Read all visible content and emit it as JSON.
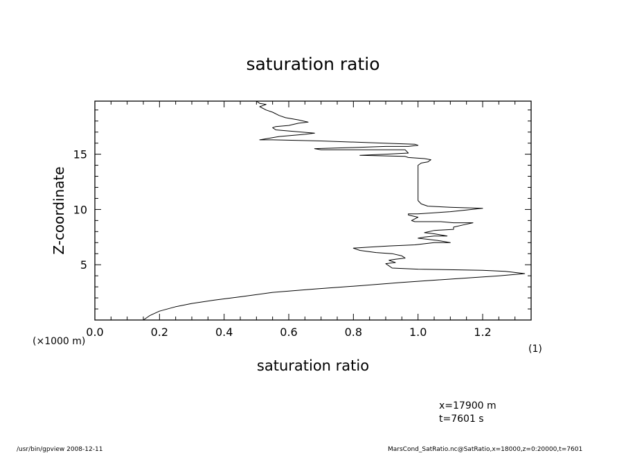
{
  "chart_data": {
    "type": "line",
    "title": "saturation ratio",
    "xlabel": "saturation ratio",
    "ylabel": "Z-coordinate",
    "x_unit": "(1)",
    "y_unit": "(×1000 m)",
    "xlim": [
      0.0,
      1.35
    ],
    "ylim": [
      0.0,
      19.8
    ],
    "x_ticks": [
      "0.0",
      "0.2",
      "0.4",
      "0.6",
      "0.8",
      "1.0",
      "1.2"
    ],
    "y_ticks": [
      "5",
      "10",
      "15"
    ],
    "grid": false,
    "legend": "none",
    "line_color": "#000000",
    "series": [
      {
        "points": [
          [
            0.15,
            0.0
          ],
          [
            0.17,
            0.4
          ],
          [
            0.2,
            0.8
          ],
          [
            0.25,
            1.2
          ],
          [
            0.3,
            1.5
          ],
          [
            0.37,
            1.8
          ],
          [
            0.45,
            2.1
          ],
          [
            0.55,
            2.5
          ],
          [
            0.68,
            2.8
          ],
          [
            0.82,
            3.1
          ],
          [
            0.95,
            3.4
          ],
          [
            1.05,
            3.6
          ],
          [
            1.15,
            3.8
          ],
          [
            1.25,
            4.0
          ],
          [
            1.33,
            4.2
          ],
          [
            1.27,
            4.4
          ],
          [
            1.2,
            4.5
          ],
          [
            1.0,
            4.6
          ],
          [
            0.92,
            4.7
          ],
          [
            0.91,
            4.9
          ],
          [
            0.9,
            5.1
          ],
          [
            0.93,
            5.2
          ],
          [
            0.91,
            5.4
          ],
          [
            0.93,
            5.5
          ],
          [
            0.96,
            5.6
          ],
          [
            0.95,
            5.8
          ],
          [
            0.92,
            6.0
          ],
          [
            0.87,
            6.1
          ],
          [
            0.82,
            6.3
          ],
          [
            0.8,
            6.5
          ],
          [
            0.85,
            6.6
          ],
          [
            0.91,
            6.7
          ],
          [
            0.99,
            6.8
          ],
          [
            1.05,
            7.0
          ],
          [
            1.1,
            7.0
          ],
          [
            1.06,
            7.2
          ],
          [
            1.0,
            7.4
          ],
          [
            1.02,
            7.5
          ],
          [
            1.05,
            7.6
          ],
          [
            1.09,
            7.6
          ],
          [
            1.05,
            7.8
          ],
          [
            1.02,
            7.9
          ],
          [
            1.05,
            8.1
          ],
          [
            1.11,
            8.2
          ],
          [
            1.11,
            8.4
          ],
          [
            1.14,
            8.6
          ],
          [
            1.17,
            8.8
          ],
          [
            1.11,
            8.8
          ],
          [
            1.07,
            8.9
          ],
          [
            1.05,
            8.9
          ],
          [
            0.99,
            8.9
          ],
          [
            0.98,
            9.0
          ],
          [
            1.0,
            9.3
          ],
          [
            0.97,
            9.5
          ],
          [
            0.97,
            9.6
          ],
          [
            1.0,
            9.6
          ],
          [
            1.1,
            9.8
          ],
          [
            1.2,
            10.1
          ],
          [
            1.1,
            10.2
          ],
          [
            1.03,
            10.3
          ],
          [
            1.01,
            10.5
          ],
          [
            1.0,
            10.8
          ],
          [
            1.0,
            11.5
          ],
          [
            1.0,
            12.5
          ],
          [
            1.0,
            13.5
          ],
          [
            1.0,
            14.0
          ],
          [
            1.01,
            14.2
          ],
          [
            1.03,
            14.3
          ],
          [
            1.04,
            14.5
          ],
          [
            1.02,
            14.6
          ],
          [
            0.97,
            14.7
          ],
          [
            0.96,
            14.8
          ],
          [
            0.82,
            14.9
          ],
          [
            0.9,
            15.0
          ],
          [
            0.97,
            15.1
          ],
          [
            0.96,
            15.4
          ],
          [
            0.85,
            15.4
          ],
          [
            0.7,
            15.4
          ],
          [
            0.68,
            15.5
          ],
          [
            0.8,
            15.6
          ],
          [
            0.9,
            15.7
          ],
          [
            0.97,
            15.7
          ],
          [
            1.0,
            15.8
          ],
          [
            0.99,
            15.9
          ],
          [
            0.89,
            16.0
          ],
          [
            0.7,
            16.2
          ],
          [
            0.55,
            16.3
          ],
          [
            0.51,
            16.3
          ],
          [
            0.57,
            16.6
          ],
          [
            0.65,
            16.8
          ],
          [
            0.68,
            16.9
          ],
          [
            0.6,
            17.1
          ],
          [
            0.56,
            17.2
          ],
          [
            0.55,
            17.4
          ],
          [
            0.56,
            17.5
          ],
          [
            0.6,
            17.6
          ],
          [
            0.63,
            17.8
          ],
          [
            0.66,
            17.9
          ],
          [
            0.63,
            18.1
          ],
          [
            0.59,
            18.3
          ],
          [
            0.57,
            18.5
          ],
          [
            0.55,
            18.8
          ],
          [
            0.53,
            19.0
          ],
          [
            0.51,
            19.3
          ],
          [
            0.53,
            19.5
          ],
          [
            0.51,
            19.6
          ],
          [
            0.5,
            19.8
          ]
        ]
      }
    ]
  },
  "annotations": {
    "position_x": "x=17900  m",
    "time": "t=7601  s"
  },
  "footer": {
    "left": "/usr/bin/gpview   2008-12-11",
    "right": "MarsCond_SatRatio.nc@SatRatio,x=18000,z=0:20000,t=7601"
  }
}
